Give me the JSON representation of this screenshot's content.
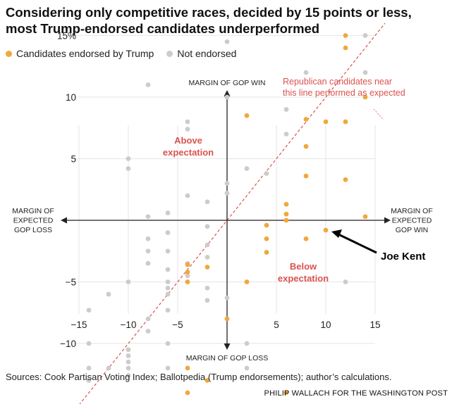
{
  "header": {
    "title_line1": "Considering only competitive races, decided by 15 points or less,",
    "title_line2": "most Trump-endorsed candidates underperformed"
  },
  "legend": [
    {
      "label": "Candidates endorsed by Trump",
      "color": "#f0a83c"
    },
    {
      "label": "Not endorsed",
      "color": "#cccccc"
    }
  ],
  "colors": {
    "endorsed": "#f0a83c",
    "not_endorsed": "#cccccc",
    "annotation": "#d9534f",
    "axis": "#222222",
    "grid": "#e6e6e6"
  },
  "chart_data": {
    "type": "scatter",
    "title": "Considering only competitive races, decided by 15 points or less, most Trump-endorsed candidates underperformed",
    "x_axis": {
      "label_left": [
        "MARGIN OF",
        "EXPECTED",
        "GOP LOSS"
      ],
      "label_right": [
        "MARGIN OF",
        "EXPECTED",
        "GOP WIN"
      ],
      "range": [
        -15,
        15
      ],
      "ticks": [
        -15,
        -10,
        -5,
        0,
        5,
        10,
        15
      ],
      "tick_labels": [
        "−15",
        "−10",
        "−5",
        "",
        "5",
        "10",
        "15"
      ]
    },
    "y_axis": {
      "label_top": "MARGIN OF GOP WIN",
      "label_bottom": "MARGIN OF GOP LOSS",
      "range": [
        -15,
        15
      ],
      "ticks": [
        -10,
        -5,
        0,
        5,
        10,
        15
      ],
      "tick_labels": [
        "−10",
        "−5",
        "",
        "5",
        "10",
        "15%"
      ]
    },
    "grid": true,
    "reference_line": {
      "from": [
        -15,
        -15
      ],
      "to": [
        16,
        16
      ],
      "style": "dashed"
    },
    "annotations": {
      "reference_note": [
        "Republican candidates near",
        "this line performed as expected"
      ],
      "above": [
        "Above",
        "expectation"
      ],
      "below": [
        "Below",
        "expectation"
      ],
      "callout": {
        "label": "Joe Kent",
        "target": [
          10,
          -0.8
        ]
      }
    },
    "series": [
      {
        "name": "Candidates endorsed by Trump",
        "color": "#f0a83c",
        "points": [
          [
            12,
            15
          ],
          [
            12,
            14
          ],
          [
            14,
            10
          ],
          [
            12,
            8
          ],
          [
            10,
            8
          ],
          [
            8,
            8.2
          ],
          [
            8,
            6
          ],
          [
            2,
            8.5
          ],
          [
            8,
            3.6
          ],
          [
            12,
            3.3
          ],
          [
            14,
            0.3
          ],
          [
            6,
            1.3
          ],
          [
            6,
            0.5
          ],
          [
            6,
            0
          ],
          [
            4,
            -0.4
          ],
          [
            10,
            -0.8
          ],
          [
            8,
            -1.5
          ],
          [
            4,
            -1.5
          ],
          [
            4,
            -2.6
          ],
          [
            -4,
            -3.6
          ],
          [
            -4,
            -4.2
          ],
          [
            -2,
            -3.8
          ],
          [
            -4,
            -5
          ],
          [
            2,
            -5
          ],
          [
            0,
            -8
          ],
          [
            -4,
            -12
          ],
          [
            -2,
            -13
          ],
          [
            -4,
            -14
          ],
          [
            6,
            -14
          ]
        ]
      },
      {
        "name": "Not endorsed",
        "color": "#cccccc",
        "points": [
          [
            0,
            14.5
          ],
          [
            14,
            15
          ],
          [
            14,
            12
          ],
          [
            8,
            12
          ],
          [
            -8,
            11
          ],
          [
            -4,
            8
          ],
          [
            -4,
            7.4
          ],
          [
            6,
            9
          ],
          [
            0,
            10
          ],
          [
            6,
            7
          ],
          [
            -10,
            5
          ],
          [
            -10,
            4.2
          ],
          [
            2,
            4.2
          ],
          [
            4,
            3.8
          ],
          [
            0,
            3
          ],
          [
            0,
            2.2
          ],
          [
            -4,
            2
          ],
          [
            -2,
            1.5
          ],
          [
            -6,
            0.6
          ],
          [
            -8,
            0.3
          ],
          [
            -2,
            -0.5
          ],
          [
            -6,
            -1
          ],
          [
            -8,
            -1.5
          ],
          [
            -2,
            -2
          ],
          [
            -8,
            -2.5
          ],
          [
            -6,
            -2.5
          ],
          [
            -2,
            -3
          ],
          [
            -8,
            -3.5
          ],
          [
            -4,
            -3.5
          ],
          [
            -6,
            -4
          ],
          [
            -4,
            -4.5
          ],
          [
            -6,
            -5
          ],
          [
            -10,
            -5
          ],
          [
            -6,
            -5.5
          ],
          [
            -2,
            -5.5
          ],
          [
            -6,
            -6
          ],
          [
            0,
            -6.3
          ],
          [
            -2,
            -6.5
          ],
          [
            -12,
            -6
          ],
          [
            -14,
            -7.3
          ],
          [
            -6,
            -7.3
          ],
          [
            -8,
            -8
          ],
          [
            -8,
            -9
          ],
          [
            -14,
            -10
          ],
          [
            -10,
            -10.5
          ],
          [
            -6,
            -10
          ],
          [
            -10,
            -11
          ],
          [
            -10,
            -11.5
          ],
          [
            -14,
            -12
          ],
          [
            -12,
            -12
          ],
          [
            -10,
            -12
          ],
          [
            -6,
            -12
          ],
          [
            -10,
            -12.6
          ],
          [
            -14,
            -13
          ],
          [
            2,
            -10
          ],
          [
            2,
            -12
          ],
          [
            12,
            -5
          ]
        ]
      }
    ]
  },
  "footer": {
    "source": "Sources: Cook Partisan Voting Index; Ballotpedia (Trump endorsements); author’s calculations.",
    "credit": "PHILIP WALLACH FOR THE WASHINGTON POST"
  }
}
